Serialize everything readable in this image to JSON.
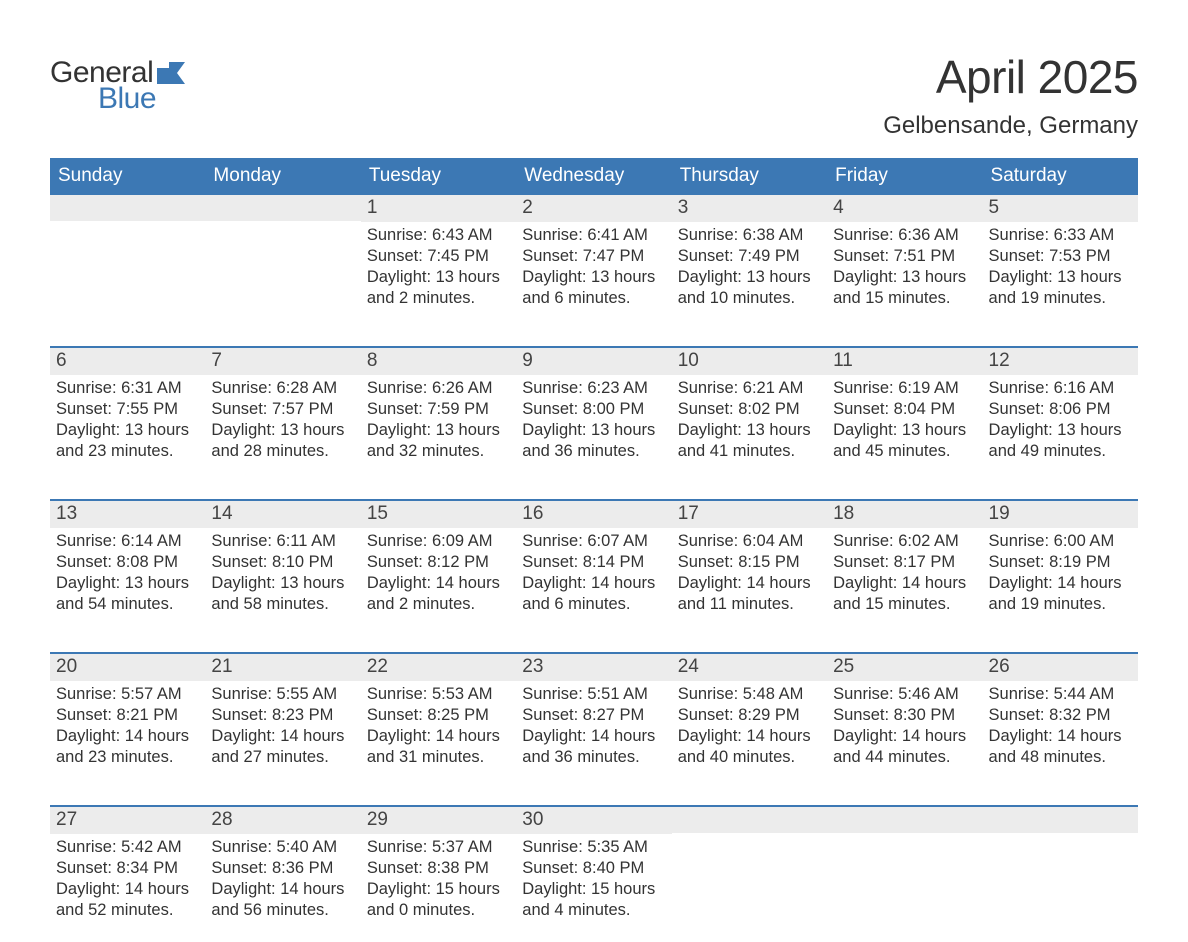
{
  "logo": {
    "text_general": "General",
    "text_blue": "Blue",
    "flag_color": "#3c78b4"
  },
  "title": "April 2025",
  "subtitle": "Gelbensande, Germany",
  "colors": {
    "header_bg": "#3c78b4",
    "header_text": "#ffffff",
    "daynum_bg": "#ececec",
    "week_border": "#3c78b4",
    "body_text": "#333333",
    "page_bg": "#ffffff"
  },
  "fontsizes": {
    "title": 46,
    "subtitle": 24,
    "dow": 19,
    "daynum": 19,
    "body": 16.5
  },
  "days_of_week": [
    "Sunday",
    "Monday",
    "Tuesday",
    "Wednesday",
    "Thursday",
    "Friday",
    "Saturday"
  ],
  "weeks": [
    [
      {
        "n": "",
        "sunrise": "",
        "sunset": "",
        "daylight": ""
      },
      {
        "n": "",
        "sunrise": "",
        "sunset": "",
        "daylight": ""
      },
      {
        "n": "1",
        "sunrise": "Sunrise: 6:43 AM",
        "sunset": "Sunset: 7:45 PM",
        "daylight": "Daylight: 13 hours and 2 minutes."
      },
      {
        "n": "2",
        "sunrise": "Sunrise: 6:41 AM",
        "sunset": "Sunset: 7:47 PM",
        "daylight": "Daylight: 13 hours and 6 minutes."
      },
      {
        "n": "3",
        "sunrise": "Sunrise: 6:38 AM",
        "sunset": "Sunset: 7:49 PM",
        "daylight": "Daylight: 13 hours and 10 minutes."
      },
      {
        "n": "4",
        "sunrise": "Sunrise: 6:36 AM",
        "sunset": "Sunset: 7:51 PM",
        "daylight": "Daylight: 13 hours and 15 minutes."
      },
      {
        "n": "5",
        "sunrise": "Sunrise: 6:33 AM",
        "sunset": "Sunset: 7:53 PM",
        "daylight": "Daylight: 13 hours and 19 minutes."
      }
    ],
    [
      {
        "n": "6",
        "sunrise": "Sunrise: 6:31 AM",
        "sunset": "Sunset: 7:55 PM",
        "daylight": "Daylight: 13 hours and 23 minutes."
      },
      {
        "n": "7",
        "sunrise": "Sunrise: 6:28 AM",
        "sunset": "Sunset: 7:57 PM",
        "daylight": "Daylight: 13 hours and 28 minutes."
      },
      {
        "n": "8",
        "sunrise": "Sunrise: 6:26 AM",
        "sunset": "Sunset: 7:59 PM",
        "daylight": "Daylight: 13 hours and 32 minutes."
      },
      {
        "n": "9",
        "sunrise": "Sunrise: 6:23 AM",
        "sunset": "Sunset: 8:00 PM",
        "daylight": "Daylight: 13 hours and 36 minutes."
      },
      {
        "n": "10",
        "sunrise": "Sunrise: 6:21 AM",
        "sunset": "Sunset: 8:02 PM",
        "daylight": "Daylight: 13 hours and 41 minutes."
      },
      {
        "n": "11",
        "sunrise": "Sunrise: 6:19 AM",
        "sunset": "Sunset: 8:04 PM",
        "daylight": "Daylight: 13 hours and 45 minutes."
      },
      {
        "n": "12",
        "sunrise": "Sunrise: 6:16 AM",
        "sunset": "Sunset: 8:06 PM",
        "daylight": "Daylight: 13 hours and 49 minutes."
      }
    ],
    [
      {
        "n": "13",
        "sunrise": "Sunrise: 6:14 AM",
        "sunset": "Sunset: 8:08 PM",
        "daylight": "Daylight: 13 hours and 54 minutes."
      },
      {
        "n": "14",
        "sunrise": "Sunrise: 6:11 AM",
        "sunset": "Sunset: 8:10 PM",
        "daylight": "Daylight: 13 hours and 58 minutes."
      },
      {
        "n": "15",
        "sunrise": "Sunrise: 6:09 AM",
        "sunset": "Sunset: 8:12 PM",
        "daylight": "Daylight: 14 hours and 2 minutes."
      },
      {
        "n": "16",
        "sunrise": "Sunrise: 6:07 AM",
        "sunset": "Sunset: 8:14 PM",
        "daylight": "Daylight: 14 hours and 6 minutes."
      },
      {
        "n": "17",
        "sunrise": "Sunrise: 6:04 AM",
        "sunset": "Sunset: 8:15 PM",
        "daylight": "Daylight: 14 hours and 11 minutes."
      },
      {
        "n": "18",
        "sunrise": "Sunrise: 6:02 AM",
        "sunset": "Sunset: 8:17 PM",
        "daylight": "Daylight: 14 hours and 15 minutes."
      },
      {
        "n": "19",
        "sunrise": "Sunrise: 6:00 AM",
        "sunset": "Sunset: 8:19 PM",
        "daylight": "Daylight: 14 hours and 19 minutes."
      }
    ],
    [
      {
        "n": "20",
        "sunrise": "Sunrise: 5:57 AM",
        "sunset": "Sunset: 8:21 PM",
        "daylight": "Daylight: 14 hours and 23 minutes."
      },
      {
        "n": "21",
        "sunrise": "Sunrise: 5:55 AM",
        "sunset": "Sunset: 8:23 PM",
        "daylight": "Daylight: 14 hours and 27 minutes."
      },
      {
        "n": "22",
        "sunrise": "Sunrise: 5:53 AM",
        "sunset": "Sunset: 8:25 PM",
        "daylight": "Daylight: 14 hours and 31 minutes."
      },
      {
        "n": "23",
        "sunrise": "Sunrise: 5:51 AM",
        "sunset": "Sunset: 8:27 PM",
        "daylight": "Daylight: 14 hours and 36 minutes."
      },
      {
        "n": "24",
        "sunrise": "Sunrise: 5:48 AM",
        "sunset": "Sunset: 8:29 PM",
        "daylight": "Daylight: 14 hours and 40 minutes."
      },
      {
        "n": "25",
        "sunrise": "Sunrise: 5:46 AM",
        "sunset": "Sunset: 8:30 PM",
        "daylight": "Daylight: 14 hours and 44 minutes."
      },
      {
        "n": "26",
        "sunrise": "Sunrise: 5:44 AM",
        "sunset": "Sunset: 8:32 PM",
        "daylight": "Daylight: 14 hours and 48 minutes."
      }
    ],
    [
      {
        "n": "27",
        "sunrise": "Sunrise: 5:42 AM",
        "sunset": "Sunset: 8:34 PM",
        "daylight": "Daylight: 14 hours and 52 minutes."
      },
      {
        "n": "28",
        "sunrise": "Sunrise: 5:40 AM",
        "sunset": "Sunset: 8:36 PM",
        "daylight": "Daylight: 14 hours and 56 minutes."
      },
      {
        "n": "29",
        "sunrise": "Sunrise: 5:37 AM",
        "sunset": "Sunset: 8:38 PM",
        "daylight": "Daylight: 15 hours and 0 minutes."
      },
      {
        "n": "30",
        "sunrise": "Sunrise: 5:35 AM",
        "sunset": "Sunset: 8:40 PM",
        "daylight": "Daylight: 15 hours and 4 minutes."
      },
      {
        "n": "",
        "sunrise": "",
        "sunset": "",
        "daylight": ""
      },
      {
        "n": "",
        "sunrise": "",
        "sunset": "",
        "daylight": ""
      },
      {
        "n": "",
        "sunrise": "",
        "sunset": "",
        "daylight": ""
      }
    ]
  ]
}
